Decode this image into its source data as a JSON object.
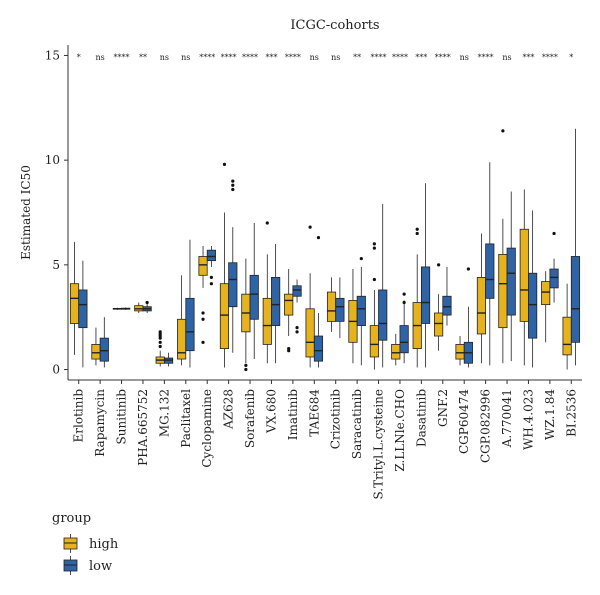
{
  "chart_data": {
    "type": "boxplot",
    "title": "ICGC-cohorts",
    "ylabel": "Estimated IC50",
    "xlabel": "",
    "ylim": [
      -0.5,
      15.5
    ],
    "yticks": [
      0,
      5,
      10,
      15
    ],
    "colors": {
      "high": "#E6B31E",
      "low": "#2E63A6"
    },
    "legend": {
      "title": "group",
      "position": "bottom-left",
      "entries": [
        "high",
        "low"
      ]
    },
    "categories": [
      "Erlotinib",
      "Rapamycin",
      "Sunitinib",
      "PHA.665752",
      "MG.132",
      "Paclitaxel",
      "Cyclopamine",
      "AZ628",
      "Sorafenib",
      "VX.680",
      "Imatinib",
      "TAE684",
      "Crizotinib",
      "Saracatinib",
      "S.Trityl.L.cysteine",
      "Z.LLNle.CHO",
      "Dasatinib",
      "GNF.2",
      "CGP60474",
      "CGP.082996",
      "A.770041",
      "WH.4.023",
      "WZ.1.84",
      "BI.2536"
    ],
    "significance": [
      "*",
      "ns",
      "****",
      "**",
      "ns",
      "ns",
      "****",
      "****",
      "****",
      "***",
      "****",
      "ns",
      "ns",
      "**",
      "****",
      "****",
      "***",
      "****",
      "ns",
      "****",
      "ns",
      "***",
      "****",
      "*"
    ],
    "series": [
      {
        "name": "high",
        "boxes": [
          [
            0.7,
            2.2,
            3.4,
            4.1,
            6.1
          ],
          [
            0.2,
            0.5,
            0.8,
            1.2,
            2.0
          ],
          [
            2.85,
            2.88,
            2.9,
            2.92,
            2.95
          ],
          [
            2.7,
            2.8,
            2.9,
            3.05,
            3.2
          ],
          [
            0.15,
            0.3,
            0.45,
            0.6,
            0.9
          ],
          [
            0.2,
            0.5,
            0.8,
            2.4,
            4.5
          ],
          [
            3.9,
            4.5,
            5.0,
            5.4,
            5.9
          ],
          [
            0.1,
            1.0,
            2.6,
            4.1,
            7.5
          ],
          [
            0.3,
            1.8,
            2.7,
            3.6,
            5.3
          ],
          [
            0.3,
            1.2,
            2.1,
            3.4,
            5.5
          ],
          [
            1.6,
            2.6,
            3.3,
            3.6,
            4.8
          ],
          [
            0.1,
            0.6,
            1.3,
            2.9,
            4.6
          ],
          [
            1.8,
            2.3,
            2.8,
            3.7,
            4.4
          ],
          [
            0.3,
            1.3,
            2.3,
            3.3,
            4.8
          ],
          [
            0.0,
            0.6,
            1.2,
            2.1,
            3.8
          ],
          [
            0.2,
            0.5,
            0.8,
            1.2,
            1.7
          ],
          [
            0.1,
            1.0,
            2.1,
            3.2,
            5.5
          ],
          [
            0.9,
            1.6,
            2.2,
            2.7,
            3.6
          ],
          [
            0.2,
            0.5,
            0.8,
            1.2,
            1.6
          ],
          [
            0.3,
            1.7,
            2.7,
            4.4,
            6.5
          ],
          [
            0.3,
            2.0,
            4.1,
            5.5,
            7.2
          ],
          [
            0.2,
            2.3,
            3.8,
            6.7,
            8.6
          ],
          [
            1.3,
            3.1,
            3.7,
            4.2,
            4.7
          ],
          [
            0.0,
            0.7,
            1.2,
            2.5,
            4.1
          ]
        ],
        "outliers": [
          [],
          [],
          [],
          [],
          [
            1.1,
            1.3,
            1.5,
            1.6,
            1.7,
            1.8
          ],
          [],
          [
            1.3,
            2.4,
            2.7
          ],
          [
            9.8
          ],
          [
            0.0,
            0.2
          ],
          [
            7.0
          ],
          [
            0.9,
            1.0
          ],
          [
            6.8
          ],
          [],
          [],
          [
            4.3,
            5.8,
            6.0
          ],
          [],
          [
            6.5,
            6.7
          ],
          [
            5.0
          ],
          [],
          [],
          [
            11.4
          ],
          [],
          [],
          []
        ]
      },
      {
        "name": "low",
        "boxes": [
          [
            0.1,
            2.0,
            3.1,
            3.8,
            5.2
          ],
          [
            0.1,
            0.4,
            0.9,
            1.5,
            2.5
          ],
          [
            2.85,
            2.88,
            2.9,
            2.93,
            2.96
          ],
          [
            2.7,
            2.8,
            2.9,
            3.0,
            3.2
          ],
          [
            0.15,
            0.3,
            0.45,
            0.55,
            0.8
          ],
          [
            0.1,
            0.9,
            1.8,
            3.4,
            6.2
          ],
          [
            4.9,
            5.2,
            5.4,
            5.7,
            5.9
          ],
          [
            0.8,
            3.0,
            4.3,
            5.1,
            6.8
          ],
          [
            0.5,
            2.4,
            3.6,
            4.5,
            7.0
          ],
          [
            0.3,
            2.1,
            3.1,
            4.4,
            6.0
          ],
          [
            3.2,
            3.5,
            3.8,
            4.0,
            4.3
          ],
          [
            0.1,
            0.4,
            0.9,
            1.6,
            2.7
          ],
          [
            1.5,
            2.3,
            3.0,
            3.4,
            4.4
          ],
          [
            0.2,
            2.1,
            2.9,
            3.5,
            4.9
          ],
          [
            0.1,
            1.4,
            2.2,
            3.8,
            7.9
          ],
          [
            0.3,
            0.8,
            1.3,
            2.1,
            3.3
          ],
          [
            0.1,
            2.2,
            3.2,
            4.9,
            8.9
          ],
          [
            2.1,
            2.6,
            3.0,
            3.5,
            4.9
          ],
          [
            0.1,
            0.3,
            0.8,
            1.3,
            3.0
          ],
          [
            0.2,
            3.4,
            4.3,
            6.0,
            9.9
          ],
          [
            0.4,
            2.6,
            4.6,
            5.8,
            8.5
          ],
          [
            0.1,
            1.5,
            3.1,
            4.6,
            7.6
          ],
          [
            3.2,
            3.9,
            4.4,
            4.8,
            5.3
          ],
          [
            0.2,
            1.3,
            2.9,
            5.4,
            11.5
          ]
        ],
        "outliers": [
          [],
          [],
          [],
          [
            3.2
          ],
          [],
          [],
          [
            4.1,
            4.4
          ],
          [
            8.6,
            8.8,
            9.0
          ],
          [],
          [],
          [
            1.8,
            2.0
          ],
          [
            6.3
          ],
          [],
          [
            5.3
          ],
          [],
          [
            3.2,
            3.6
          ],
          [],
          [],
          [
            4.8
          ],
          [],
          [],
          [],
          [
            6.5
          ],
          []
        ]
      }
    ]
  }
}
